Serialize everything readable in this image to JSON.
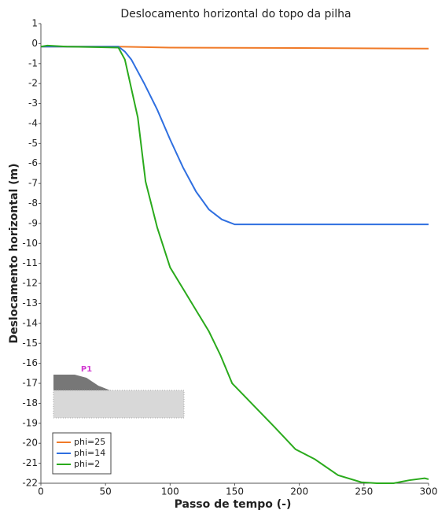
{
  "chart_data": {
    "type": "line",
    "title": "Deslocamento horizontal do topo da pilha",
    "x_label": "Passo de tempo (-)",
    "y_label": "Deslocamento horizontal (m)",
    "xlim": [
      0,
      300
    ],
    "xticks": [
      0,
      50,
      100,
      150,
      200,
      250,
      300
    ],
    "ylim": [
      -22,
      1
    ],
    "yticks": [
      1,
      0,
      -1,
      -2,
      -3,
      -4,
      -5,
      -6,
      -7,
      -8,
      -9,
      -10,
      -11,
      -12,
      -13,
      -14,
      -15,
      -16,
      -17,
      -18,
      -19,
      -20,
      -21,
      -22
    ],
    "grid": false,
    "legend": "lower left",
    "inset_label": "P1",
    "series": [
      {
        "name": "phi=25",
        "color": "#f07a28",
        "x": [
          0,
          60,
          100,
          200,
          300
        ],
        "values": [
          -0.15,
          -0.15,
          -0.2,
          -0.22,
          -0.25
        ]
      },
      {
        "name": "phi=14",
        "color": "#2f6fe0",
        "x": [
          0,
          60,
          65,
          70,
          80,
          90,
          100,
          110,
          120,
          130,
          140,
          150,
          300
        ],
        "values": [
          -0.15,
          -0.15,
          -0.4,
          -0.8,
          -2,
          -3.3,
          -4.8,
          -6.2,
          -7.4,
          -8.3,
          -8.8,
          -9.05,
          -9.05
        ]
      },
      {
        "name": "phi=2",
        "color": "#2aaa1c",
        "x": [
          0,
          5,
          20,
          60,
          65,
          75,
          81,
          90,
          100,
          115,
          130,
          139,
          148,
          163,
          181,
          197,
          212,
          230,
          248,
          260,
          273,
          285,
          297,
          300
        ],
        "values": [
          -0.15,
          -0.1,
          -0.15,
          -0.2,
          -0.8,
          -3.7,
          -6.9,
          -9.2,
          -11.2,
          -12.8,
          -14.4,
          -15.6,
          -17,
          -18,
          -19.2,
          -20.3,
          -20.8,
          -21.6,
          -21.95,
          -22,
          -22,
          -21.85,
          -21.75,
          -21.8
        ]
      }
    ]
  }
}
